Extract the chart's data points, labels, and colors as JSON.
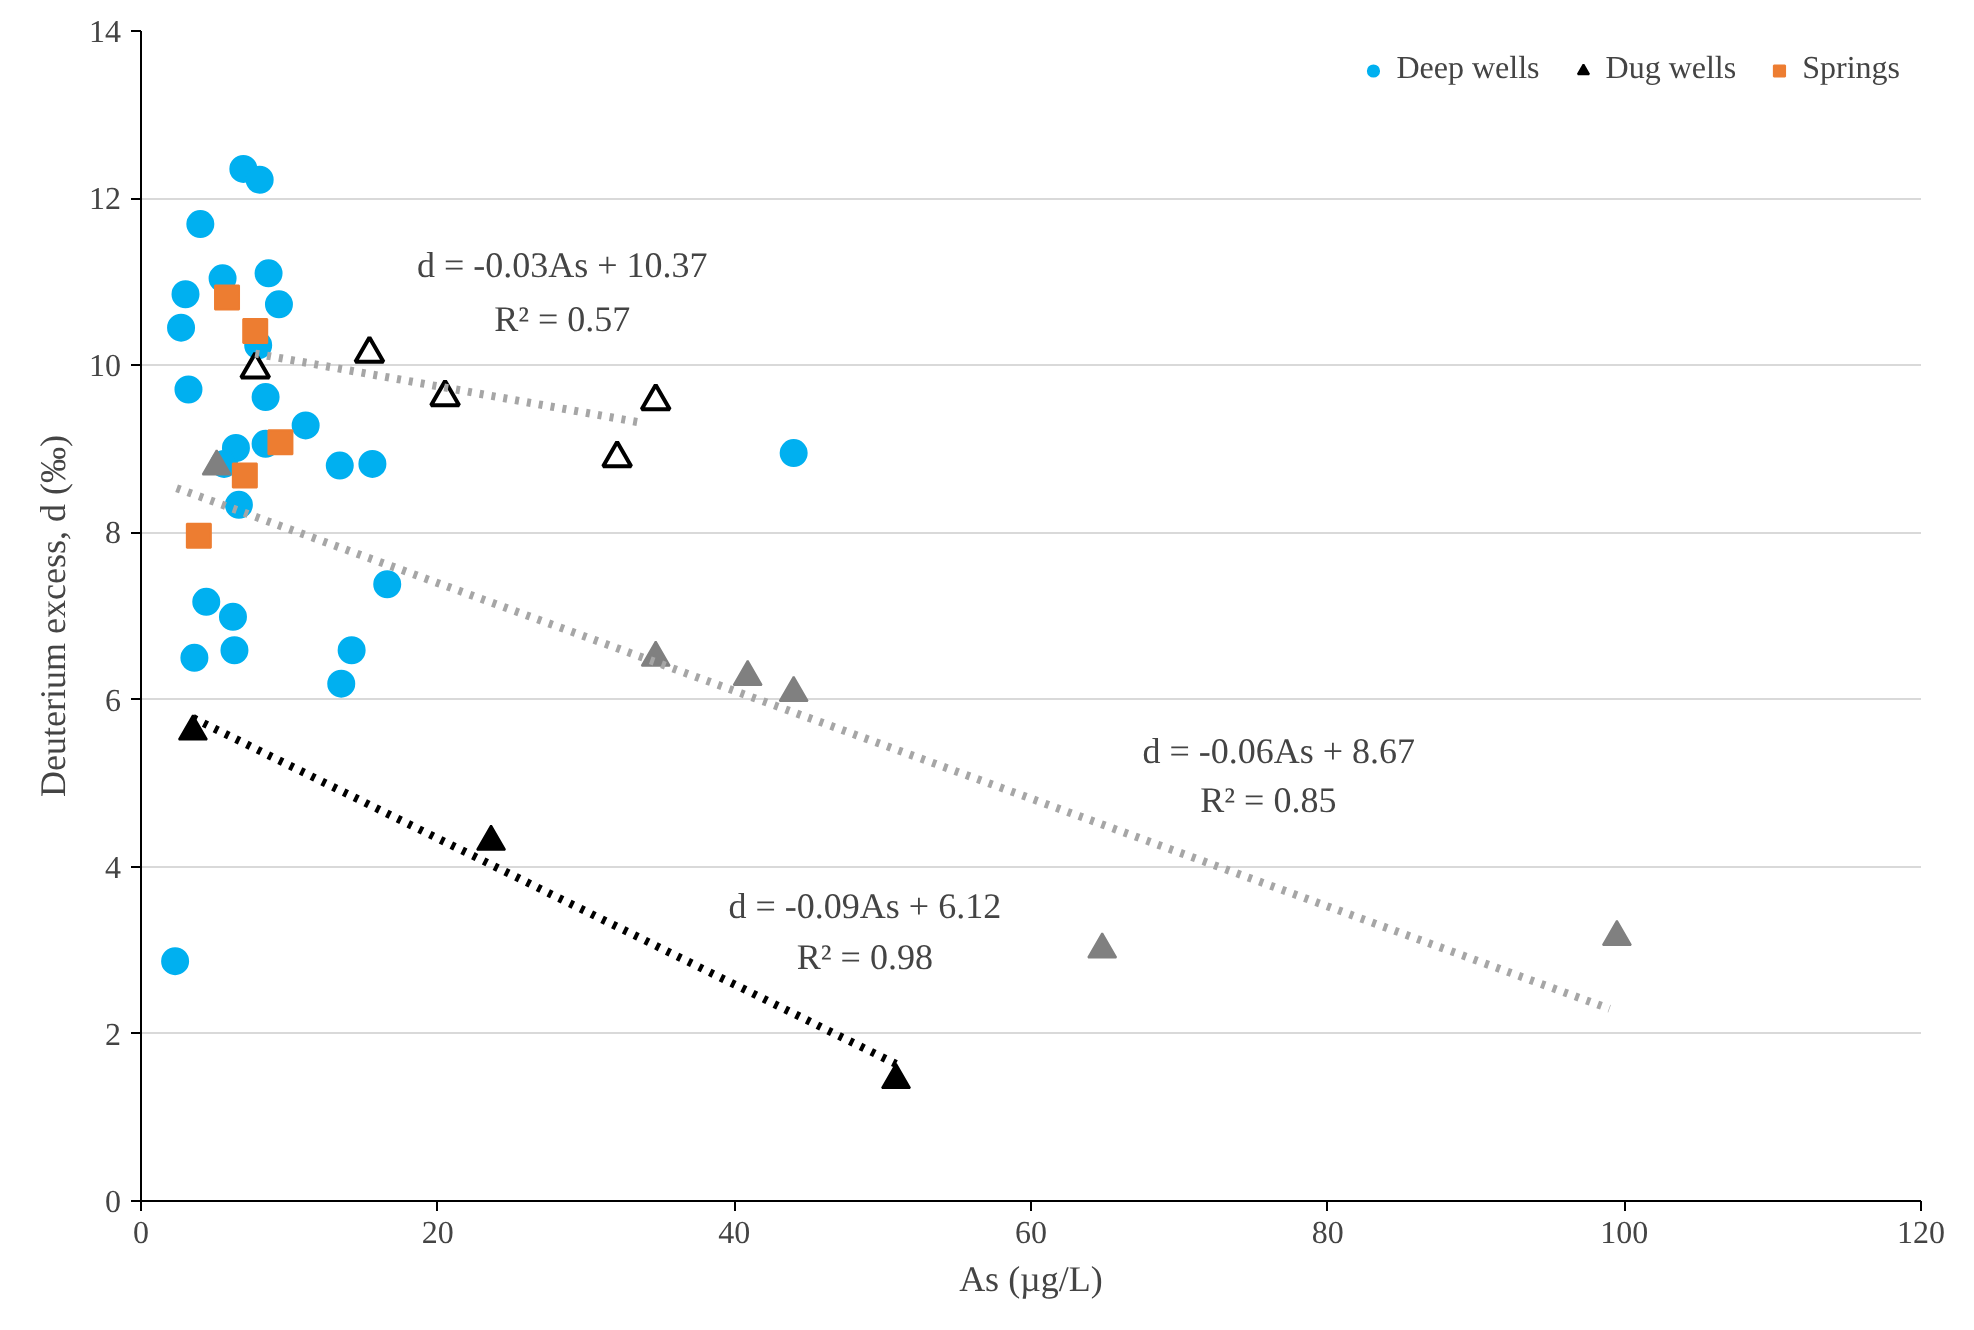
{
  "chart_data": {
    "type": "scatter",
    "xlabel": "As (µg/L)",
    "ylabel": "Deuterium excess, d (‰)",
    "xlim": [
      0,
      120
    ],
    "xticks": [
      0,
      20,
      40,
      60,
      80,
      100,
      120
    ],
    "ylim": [
      0,
      14
    ],
    "yticks": [
      0,
      2,
      4,
      6,
      8,
      10,
      12,
      14
    ],
    "grid": "y",
    "legend": "top right",
    "series": [
      {
        "name": "Deep wells",
        "color": "#00b0f0",
        "marker": "circle",
        "x": [
          6.9,
          8.0,
          4.0,
          5.5,
          8.6,
          3.0,
          9.3,
          2.7,
          7.9,
          3.2,
          8.4,
          11.1,
          6.4,
          8.4,
          5.6,
          13.4,
          15.6,
          6.6,
          16.6,
          4.4,
          6.2,
          3.6,
          6.3,
          14.2,
          13.5,
          2.3,
          44.0
        ],
        "values": [
          12.35,
          12.22,
          11.69,
          11.04,
          11.1,
          10.85,
          10.73,
          10.45,
          10.24,
          9.71,
          9.62,
          9.28,
          9.01,
          9.06,
          8.82,
          8.8,
          8.82,
          8.33,
          7.38,
          7.17,
          6.99,
          6.5,
          6.59,
          6.59,
          6.19,
          2.87,
          8.95
        ]
      },
      {
        "name": "Dug wells",
        "color": "#000000",
        "marker": "triangle",
        "x": [
          3.5,
          23.6,
          50.9
        ],
        "values": [
          5.62,
          4.3,
          1.45
        ]
      },
      {
        "color": "#000000",
        "marker": "triangle",
        "x": [
          7.7,
          15.4,
          20.5,
          34.7,
          32.1
        ],
        "values": [
          9.95,
          10.14,
          9.62,
          9.57,
          8.89
        ]
      },
      {
        "color": "#808080",
        "marker": "triangle",
        "x": [
          5.1,
          34.7,
          40.9,
          44.0,
          64.8,
          99.5
        ],
        "values": [
          8.79,
          6.5,
          6.27,
          6.08,
          3.01,
          3.16
        ]
      },
      {
        "name": "Springs",
        "color": "#ed7d31",
        "marker": "square",
        "x": [
          5.8,
          7.7,
          9.4,
          7.0,
          3.9
        ],
        "values": [
          10.81,
          10.41,
          9.08,
          8.68,
          7.96
        ]
      },
      {
        "type": "line",
        "line_style": "dotted",
        "color": "#000000",
        "x": [
          3.5,
          50.9
        ],
        "values": [
          5.78,
          1.64
        ]
      },
      {
        "type": "line",
        "line_style": "dotted",
        "color": "#a6a6a6",
        "x": [
          2.4,
          99.0
        ],
        "values": [
          8.53,
          2.3
        ]
      },
      {
        "type": "line",
        "line_style": "dotted",
        "color": "#a6a6a6",
        "x": [
          7.7,
          33.5
        ],
        "values": [
          10.14,
          9.32
        ]
      }
    ],
    "annotations": [
      "d = -0.03As + 10.37",
      "R² = 0.57",
      "d = -0.06As + 8.67",
      "R² = 0.85",
      "d = -0.09As + 6.12",
      "R² = 0.98"
    ]
  }
}
